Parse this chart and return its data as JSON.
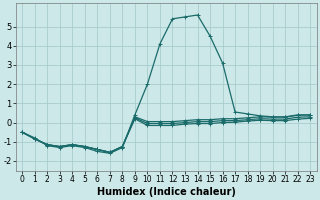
{
  "xlabel": "Humidex (Indice chaleur)",
  "background_color": "#cce8e8",
  "grid_color": "#aacccc",
  "line_color": "#1a6b6b",
  "xlim": [
    -0.5,
    23.5
  ],
  "ylim": [
    -2.5,
    6.2
  ],
  "yticks": [
    -2,
    -1,
    0,
    1,
    2,
    3,
    4,
    5
  ],
  "xticks": [
    0,
    1,
    2,
    3,
    4,
    5,
    6,
    7,
    8,
    9,
    10,
    11,
    12,
    13,
    14,
    15,
    16,
    17,
    18,
    19,
    20,
    21,
    22,
    23
  ],
  "series": [
    {
      "x": [
        0,
        1,
        2,
        3,
        4,
        5,
        6,
        7,
        8,
        9,
        10,
        11,
        12,
        13,
        14,
        15,
        16,
        17,
        18,
        19,
        20,
        21,
        22,
        23
      ],
      "y": [
        -0.5,
        -0.8,
        -1.2,
        -1.3,
        -1.2,
        -1.3,
        -1.5,
        -1.6,
        -1.3,
        0.4,
        2.0,
        4.1,
        5.4,
        5.5,
        5.6,
        4.5,
        3.1,
        0.55,
        0.45,
        0.35,
        0.3,
        0.3,
        0.4,
        0.4
      ]
    },
    {
      "x": [
        0,
        1,
        2,
        3,
        4,
        5,
        6,
        7,
        8,
        9,
        10,
        11,
        12,
        13,
        14,
        15,
        16,
        17,
        18,
        19,
        20,
        21,
        22,
        23
      ],
      "y": [
        -0.5,
        -0.85,
        -1.15,
        -1.25,
        -1.15,
        -1.25,
        -1.4,
        -1.55,
        -1.25,
        0.3,
        0.05,
        0.05,
        0.05,
        0.1,
        0.15,
        0.15,
        0.2,
        0.2,
        0.25,
        0.3,
        0.28,
        0.28,
        0.38,
        0.4
      ]
    },
    {
      "x": [
        0,
        1,
        2,
        3,
        4,
        5,
        6,
        7,
        8,
        9,
        10,
        11,
        12,
        13,
        14,
        15,
        16,
        17,
        18,
        19,
        20,
        21,
        22,
        23
      ],
      "y": [
        -0.5,
        -0.85,
        -1.15,
        -1.25,
        -1.15,
        -1.25,
        -1.4,
        -1.55,
        -1.25,
        0.25,
        -0.05,
        -0.05,
        -0.05,
        0.0,
        0.05,
        0.05,
        0.1,
        0.1,
        0.15,
        0.2,
        0.18,
        0.18,
        0.28,
        0.3
      ]
    },
    {
      "x": [
        0,
        1,
        2,
        3,
        4,
        5,
        6,
        7,
        8,
        9,
        10,
        11,
        12,
        13,
        14,
        15,
        16,
        17,
        18,
        19,
        20,
        21,
        22,
        23
      ],
      "y": [
        -0.5,
        -0.85,
        -1.15,
        -1.25,
        -1.15,
        -1.25,
        -1.4,
        -1.55,
        -1.25,
        0.2,
        -0.15,
        -0.15,
        -0.15,
        -0.08,
        -0.05,
        -0.05,
        0.0,
        0.02,
        0.08,
        0.12,
        0.1,
        0.1,
        0.18,
        0.22
      ]
    }
  ],
  "figsize": [
    3.2,
    2.0
  ],
  "dpi": 100,
  "xlabel_fontsize": 7,
  "tick_fontsize": 5.5,
  "linewidth": 0.9,
  "markersize": 3.5
}
